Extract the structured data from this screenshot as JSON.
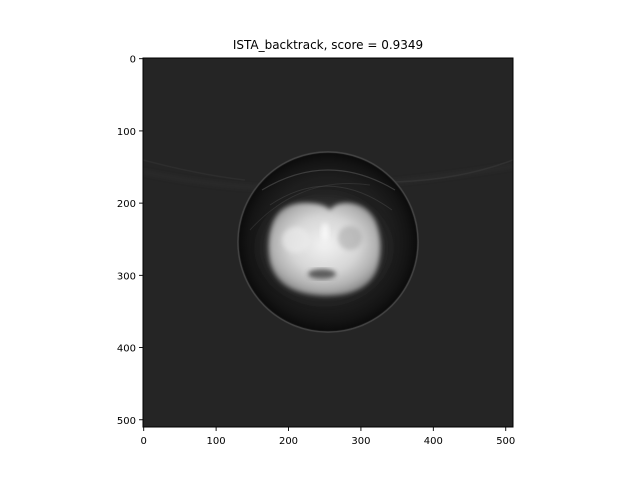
{
  "figure": {
    "title": "ISTA_backtrack, score = 0.9349",
    "xlim": [
      0,
      511
    ],
    "ylim": [
      511,
      0
    ],
    "x_ticks": [
      0,
      100,
      200,
      300,
      400,
      500
    ],
    "y_ticks": [
      0,
      100,
      200,
      300,
      400,
      500
    ],
    "image": {
      "colormap": "gray",
      "background_level": 0.15,
      "outer_disk": {
        "center": [
          256,
          256
        ],
        "radius": 125
      },
      "bright_region": {
        "center": [
          256,
          250
        ]
      }
    }
  }
}
